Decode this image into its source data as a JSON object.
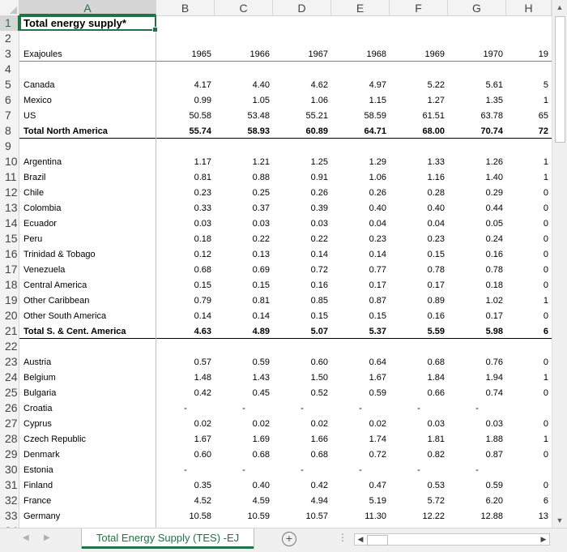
{
  "sheet": {
    "columns": [
      "A",
      "B",
      "C",
      "D",
      "E",
      "F",
      "G",
      "H"
    ],
    "selected_column": "A",
    "selected_row": "1",
    "title": "Total energy supply*",
    "unit_label": "Exajoules",
    "years": [
      "1965",
      "1966",
      "1967",
      "1968",
      "1969",
      "1970",
      "19"
    ],
    "rows": [
      {
        "n": "1",
        "label": "Total energy supply*",
        "kind": "title",
        "values": []
      },
      {
        "n": "2",
        "label": "",
        "values": []
      },
      {
        "n": "3",
        "label": "Exajoules",
        "kind": "header",
        "values": [
          "1965",
          "1966",
          "1967",
          "1968",
          "1969",
          "1970",
          "19"
        ]
      },
      {
        "n": "4",
        "label": "",
        "values": []
      },
      {
        "n": "5",
        "label": "Canada",
        "values": [
          "4.17",
          "4.40",
          "4.62",
          "4.97",
          "5.22",
          "5.61",
          "5"
        ]
      },
      {
        "n": "6",
        "label": "Mexico",
        "values": [
          "0.99",
          "1.05",
          "1.06",
          "1.15",
          "1.27",
          "1.35",
          "1"
        ]
      },
      {
        "n": "7",
        "label": "US",
        "values": [
          "50.58",
          "53.48",
          "55.21",
          "58.59",
          "61.51",
          "63.78",
          "65"
        ]
      },
      {
        "n": "8",
        "label": "Total North America",
        "kind": "total",
        "values": [
          "55.74",
          "58.93",
          "60.89",
          "64.71",
          "68.00",
          "70.74",
          "72"
        ]
      },
      {
        "n": "9",
        "label": "",
        "values": []
      },
      {
        "n": "10",
        "label": "Argentina",
        "values": [
          "1.17",
          "1.21",
          "1.25",
          "1.29",
          "1.33",
          "1.26",
          "1"
        ]
      },
      {
        "n": "11",
        "label": "Brazil",
        "values": [
          "0.81",
          "0.88",
          "0.91",
          "1.06",
          "1.16",
          "1.40",
          "1"
        ]
      },
      {
        "n": "12",
        "label": "Chile",
        "values": [
          "0.23",
          "0.25",
          "0.26",
          "0.26",
          "0.28",
          "0.29",
          "0"
        ]
      },
      {
        "n": "13",
        "label": "Colombia",
        "values": [
          "0.33",
          "0.37",
          "0.39",
          "0.40",
          "0.40",
          "0.44",
          "0"
        ]
      },
      {
        "n": "14",
        "label": "Ecuador",
        "values": [
          "0.03",
          "0.03",
          "0.03",
          "0.04",
          "0.04",
          "0.05",
          "0"
        ]
      },
      {
        "n": "15",
        "label": "Peru",
        "values": [
          "0.18",
          "0.22",
          "0.22",
          "0.23",
          "0.23",
          "0.24",
          "0"
        ]
      },
      {
        "n": "16",
        "label": "Trinidad & Tobago",
        "values": [
          "0.12",
          "0.13",
          "0.14",
          "0.14",
          "0.15",
          "0.16",
          "0"
        ]
      },
      {
        "n": "17",
        "label": "Venezuela",
        "values": [
          "0.68",
          "0.69",
          "0.72",
          "0.77",
          "0.78",
          "0.78",
          "0"
        ]
      },
      {
        "n": "18",
        "label": "Central America",
        "values": [
          "0.15",
          "0.15",
          "0.16",
          "0.17",
          "0.17",
          "0.18",
          "0"
        ]
      },
      {
        "n": "19",
        "label": "Other Caribbean",
        "values": [
          "0.79",
          "0.81",
          "0.85",
          "0.87",
          "0.89",
          "1.02",
          "1"
        ]
      },
      {
        "n": "20",
        "label": "Other South America",
        "values": [
          "0.14",
          "0.14",
          "0.15",
          "0.15",
          "0.16",
          "0.17",
          "0"
        ]
      },
      {
        "n": "21",
        "label": "Total S. & Cent. America",
        "kind": "total",
        "values": [
          "4.63",
          "4.89",
          "5.07",
          "5.37",
          "5.59",
          "5.98",
          "6"
        ]
      },
      {
        "n": "22",
        "label": "",
        "values": []
      },
      {
        "n": "23",
        "label": "Austria",
        "values": [
          "0.57",
          "0.59",
          "0.60",
          "0.64",
          "0.68",
          "0.76",
          "0"
        ]
      },
      {
        "n": "24",
        "label": "Belgium",
        "values": [
          "1.48",
          "1.43",
          "1.50",
          "1.67",
          "1.84",
          "1.94",
          "1"
        ]
      },
      {
        "n": "25",
        "label": "Bulgaria",
        "values": [
          "0.42",
          "0.45",
          "0.52",
          "0.59",
          "0.66",
          "0.74",
          "0"
        ]
      },
      {
        "n": "26",
        "label": "Croatia",
        "values": [
          "-",
          "-",
          "-",
          "-",
          "-",
          "-",
          ""
        ]
      },
      {
        "n": "27",
        "label": "Cyprus",
        "values": [
          "0.02",
          "0.02",
          "0.02",
          "0.02",
          "0.03",
          "0.03",
          "0"
        ]
      },
      {
        "n": "28",
        "label": "Czech Republic",
        "values": [
          "1.67",
          "1.69",
          "1.66",
          "1.74",
          "1.81",
          "1.88",
          "1"
        ]
      },
      {
        "n": "29",
        "label": "Denmark",
        "values": [
          "0.60",
          "0.68",
          "0.68",
          "0.72",
          "0.82",
          "0.87",
          "0"
        ]
      },
      {
        "n": "30",
        "label": "Estonia",
        "values": [
          "-",
          "-",
          "-",
          "-",
          "-",
          "-",
          ""
        ]
      },
      {
        "n": "31",
        "label": "Finland",
        "values": [
          "0.35",
          "0.40",
          "0.42",
          "0.47",
          "0.53",
          "0.59",
          "0"
        ]
      },
      {
        "n": "32",
        "label": "France",
        "values": [
          "4.52",
          "4.59",
          "4.94",
          "5.19",
          "5.72",
          "6.20",
          "6"
        ]
      },
      {
        "n": "33",
        "label": "Germany",
        "values": [
          "10.58",
          "10.59",
          "10.57",
          "11.30",
          "12.22",
          "12.88",
          "13"
        ]
      }
    ],
    "partial_row": "34"
  },
  "tabs": {
    "active_label": "Total Energy Supply (TES) -EJ",
    "add_symbol": "+",
    "options_symbol": "⋮"
  },
  "colors": {
    "accent": "#217346",
    "header_bg": "#f3f3f3",
    "selected_header_bg": "#d6d6d6"
  }
}
